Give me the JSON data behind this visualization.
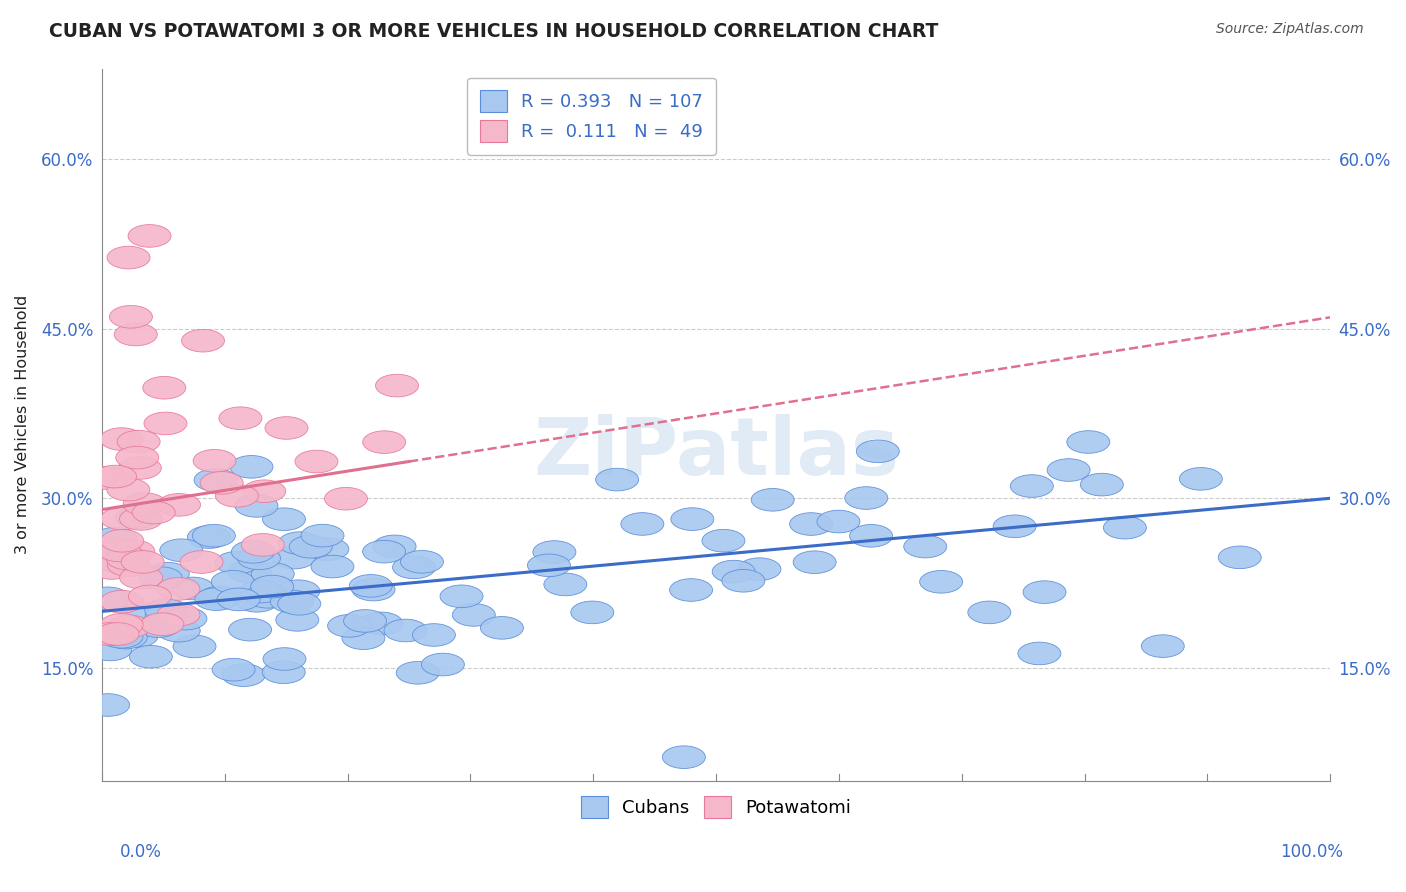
{
  "title": "CUBAN VS POTAWATOMI 3 OR MORE VEHICLES IN HOUSEHOLD CORRELATION CHART",
  "source": "Source: ZipAtlas.com",
  "ylabel": "3 or more Vehicles in Household",
  "legend_label1": "Cubans",
  "legend_label2": "Potawatomi",
  "R1": 0.393,
  "N1": 107,
  "R2": 0.111,
  "N2": 49,
  "blue_color": "#A8C8F0",
  "pink_color": "#F5B8CB",
  "blue_edge": "#5B8DD9",
  "pink_edge": "#E8789A",
  "blue_line": "#3A6CC8",
  "pink_line": "#E07090",
  "ytick_vals": [
    15,
    30,
    45,
    60
  ],
  "xlim": [
    0,
    100
  ],
  "ylim": [
    5,
    68
  ],
  "watermark": "ZiPatlas",
  "blue_trend_x0": 0,
  "blue_trend_y0": 20.0,
  "blue_trend_x1": 100,
  "blue_trend_y1": 30.0,
  "pink_trend_x0": 0,
  "pink_trend_y0": 29.0,
  "pink_trend_x1": 100,
  "pink_trend_y1": 46.0,
  "pink_solid_end": 25
}
